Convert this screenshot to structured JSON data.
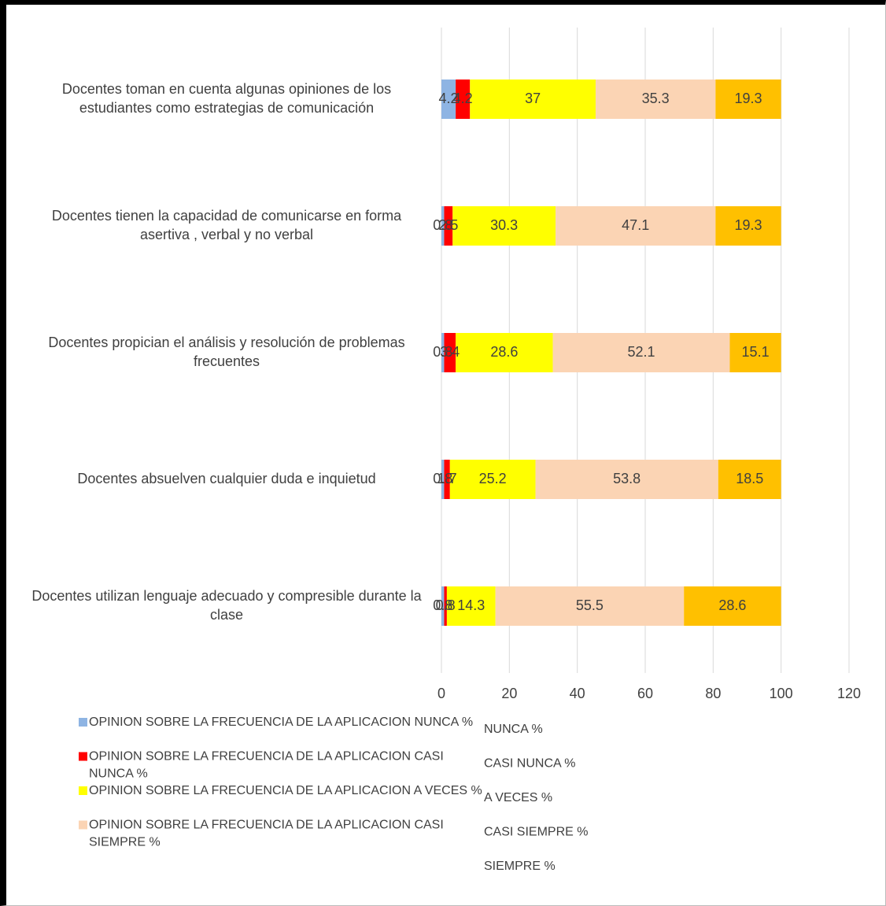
{
  "chart_data": {
    "type": "stacked-bar-horizontal",
    "categories": [
      "Docentes toman en cuenta algunas opiniones de los estudiantes como estrategias de comunicación",
      "Docentes  tienen la capacidad de comunicarse en forma asertiva , verbal y no verbal",
      "Docentes  propician el análisis y resolución de problemas frecuentes",
      "Docentes absuelven cualquier duda e inquietud",
      "Docentes utilizan lenguaje adecuado y compresible durante la clase"
    ],
    "series": [
      {
        "name": "OPINION SOBRE LA FRECUENCIA DE LA APLICACION NUNCA %",
        "color": "#8eb4e3",
        "values": [
          4.2,
          0.8,
          0.8,
          0.8,
          0.8
        ]
      },
      {
        "name": "OPINION SOBRE LA FRECUENCIA DE LA APLICACION CASI NUNCA %",
        "color": "#ff0000",
        "values": [
          4.2,
          2.5,
          3.4,
          1.7,
          0.8
        ]
      },
      {
        "name": "OPINION SOBRE LA FRECUENCIA DE LA APLICACION  A VECES %",
        "color": "#ffff00",
        "values": [
          37,
          30.3,
          28.6,
          25.2,
          14.3
        ]
      },
      {
        "name": "OPINION SOBRE LA FRECUENCIA DE LA APLICACION CASI SIEMPRE %",
        "color": "#fbd4b4",
        "values": [
          35.3,
          47.1,
          52.1,
          53.8,
          55.5
        ]
      },
      {
        "color": "#ffc000",
        "values": [
          19.3,
          19.3,
          15.1,
          18.5,
          28.6
        ]
      }
    ],
    "legend_labels": [
      "NUNCA %",
      "CASI NUNCA %",
      "A VECES %",
      "CASI SIEMPRE %",
      "SIEMPRE %"
    ],
    "xlim": [
      0,
      120
    ],
    "xticks": [
      0,
      20,
      40,
      60,
      80,
      100,
      120
    ],
    "grid": true
  }
}
